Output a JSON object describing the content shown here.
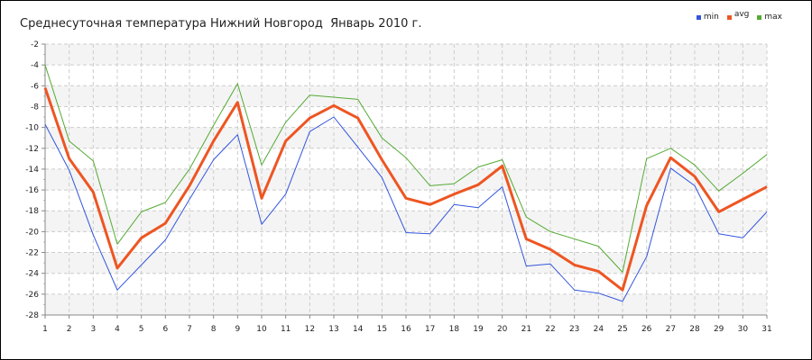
{
  "chart_data": {
    "type": "line",
    "title": "Среднесуточная температура Нижний Новгород  Январь 2010 г.",
    "xlabel": "",
    "ylabel": "",
    "ylim": [
      -28,
      -2
    ],
    "yticks": [
      "-2",
      "-4",
      "-6",
      "-8",
      "-10",
      "-12",
      "-14",
      "-16",
      "-18",
      "-20",
      "-22",
      "-24",
      "-26",
      "-28"
    ],
    "x": [
      1,
      2,
      3,
      4,
      5,
      6,
      7,
      8,
      9,
      10,
      11,
      12,
      13,
      14,
      15,
      16,
      17,
      18,
      19,
      20,
      21,
      22,
      23,
      24,
      25,
      26,
      27,
      28,
      29,
      30,
      31
    ],
    "series": [
      {
        "name": "min",
        "color": "#3355dd",
        "values": [
          -9.7,
          -14.1,
          -20.3,
          -25.6,
          -23.2,
          -20.8,
          -16.9,
          -13.1,
          -10.7,
          -19.3,
          -16.4,
          -10.4,
          -9.0,
          -11.9,
          -14.8,
          -20.1,
          -20.2,
          -17.4,
          -17.7,
          -15.7,
          -23.3,
          -23.1,
          -25.6,
          -25.9,
          -26.7,
          -22.4,
          -13.9,
          -15.6,
          -20.2,
          -20.6,
          -18.1
        ]
      },
      {
        "name": "avg",
        "color": "#ee5522",
        "values": [
          -6.2,
          -13.0,
          -16.2,
          -23.5,
          -20.6,
          -19.2,
          -15.6,
          -11.3,
          -7.6,
          -16.8,
          -11.3,
          -9.1,
          -7.9,
          -9.1,
          -13.1,
          -16.8,
          -17.4,
          -16.4,
          -15.5,
          -13.7,
          -20.7,
          -21.7,
          -23.2,
          -23.8,
          -25.6,
          -17.5,
          -12.9,
          -14.7,
          -18.1,
          -16.9,
          -15.7
        ]
      },
      {
        "name": "max",
        "color": "#55aa33",
        "values": [
          -4.0,
          -11.3,
          -13.2,
          -21.2,
          -18.1,
          -17.2,
          -14.0,
          -9.8,
          -5.8,
          -13.6,
          -9.5,
          -6.9,
          -7.1,
          -7.3,
          -11.0,
          -12.9,
          -15.6,
          -15.4,
          -13.8,
          -13.1,
          -18.6,
          -20.0,
          -20.7,
          -21.4,
          -23.9,
          -13.0,
          -12.0,
          -13.6,
          -16.1,
          -14.4,
          -12.6
        ]
      }
    ],
    "grid": true,
    "legend_position": "top-right"
  }
}
